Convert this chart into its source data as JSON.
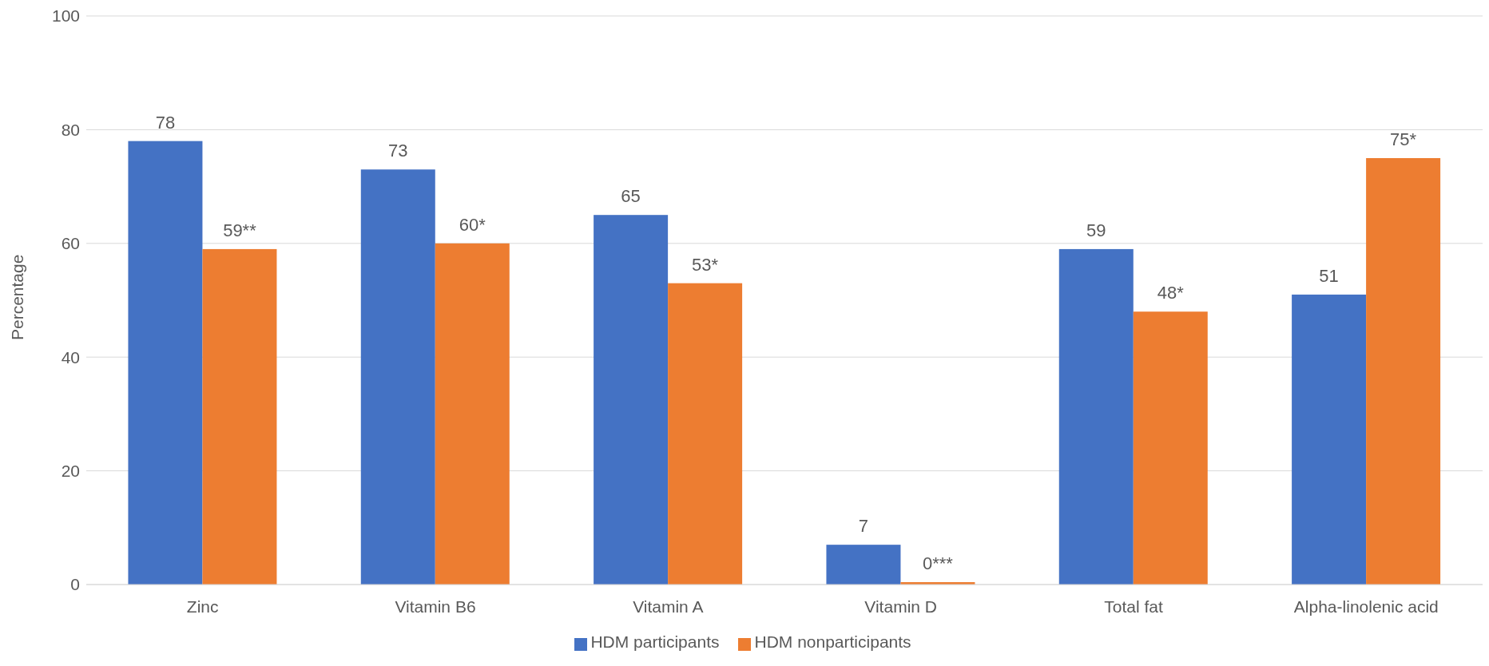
{
  "chart_data": {
    "type": "bar",
    "ylabel": "Percentage",
    "categories": [
      "Zinc",
      "Vitamin B6",
      "Vitamin A",
      "Vitamin D",
      "Total fat",
      "Alpha-linolenic acid"
    ],
    "series": [
      {
        "name": "HDM participants",
        "color": "#4472c4",
        "values": [
          78,
          73,
          65,
          7,
          59,
          51
        ],
        "value_labels": [
          "78",
          "73",
          "65",
          "7",
          "59",
          "51"
        ]
      },
      {
        "name": "HDM nonparticipants",
        "color": "#ed7d31",
        "values": [
          59,
          60,
          53,
          0,
          48,
          75
        ],
        "value_labels": [
          "59**",
          "60*",
          "53*",
          "0***",
          "48*",
          "75*"
        ]
      }
    ],
    "ylim": [
      0,
      100
    ],
    "yticks": [
      0,
      20,
      40,
      60,
      80,
      100
    ],
    "grid": "y",
    "legend": "bottom"
  }
}
